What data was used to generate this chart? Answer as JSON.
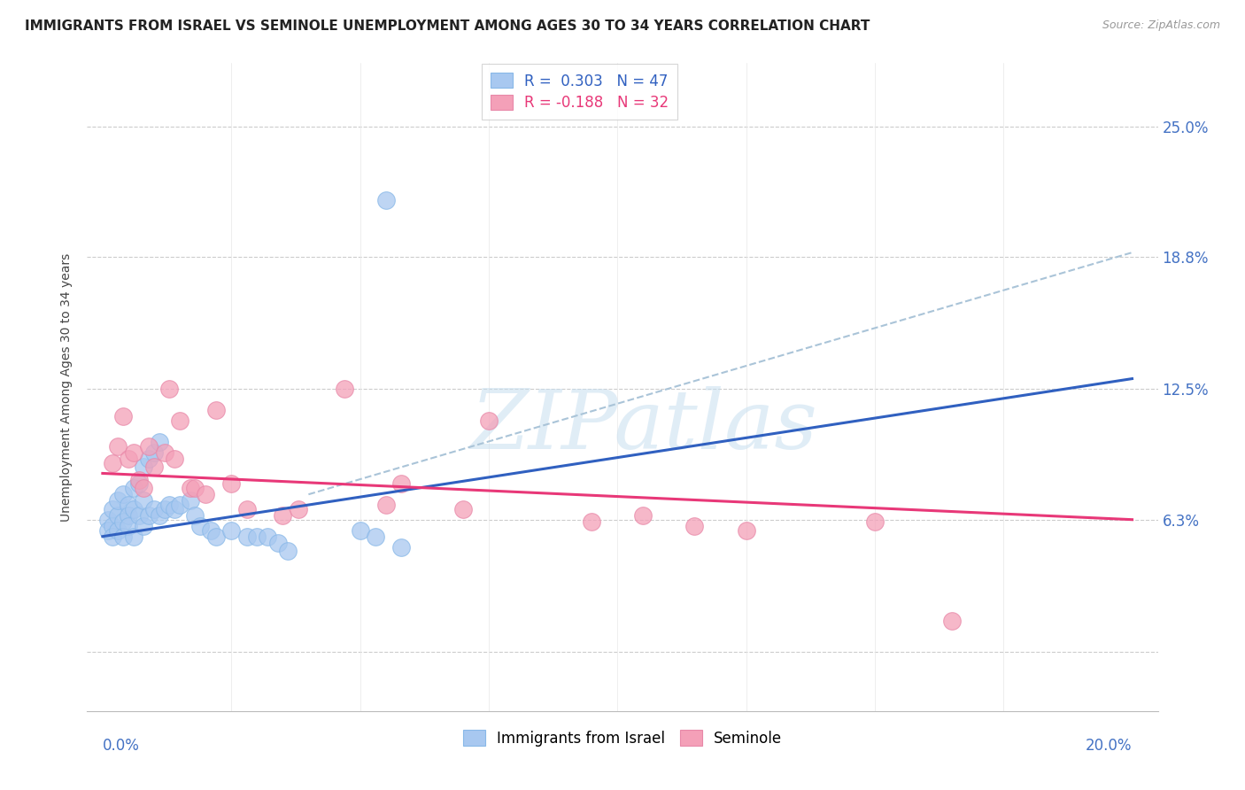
{
  "title": "IMMIGRANTS FROM ISRAEL VS SEMINOLE UNEMPLOYMENT AMONG AGES 30 TO 34 YEARS CORRELATION CHART",
  "source": "Source: ZipAtlas.com",
  "ylabel": "Unemployment Among Ages 30 to 34 years",
  "legend1_r": "0.303",
  "legend1_n": "47",
  "legend2_r": "-0.188",
  "legend2_n": "32",
  "color_blue": "#a8c8f0",
  "color_pink": "#f4a0b8",
  "color_blue_line": "#3060c0",
  "color_pink_line": "#e83878",
  "color_dashed": "#aac4d8",
  "watermark_text": "ZIPatlas",
  "xlim": [
    0.0,
    0.2
  ],
  "ylim": [
    -0.028,
    0.28
  ],
  "blue_x": [
    0.001,
    0.001,
    0.002,
    0.002,
    0.002,
    0.003,
    0.003,
    0.003,
    0.004,
    0.004,
    0.004,
    0.005,
    0.005,
    0.005,
    0.006,
    0.006,
    0.006,
    0.007,
    0.007,
    0.008,
    0.008,
    0.008,
    0.009,
    0.009,
    0.01,
    0.01,
    0.011,
    0.011,
    0.012,
    0.013,
    0.014,
    0.015,
    0.017,
    0.018,
    0.019,
    0.021,
    0.022,
    0.025,
    0.028,
    0.03,
    0.032,
    0.034,
    0.036,
    0.05,
    0.053,
    0.055,
    0.058
  ],
  "blue_y": [
    0.063,
    0.058,
    0.068,
    0.06,
    0.055,
    0.065,
    0.072,
    0.058,
    0.075,
    0.062,
    0.055,
    0.07,
    0.065,
    0.06,
    0.078,
    0.068,
    0.055,
    0.08,
    0.065,
    0.088,
    0.072,
    0.06,
    0.092,
    0.065,
    0.095,
    0.068,
    0.1,
    0.065,
    0.068,
    0.07,
    0.068,
    0.07,
    0.072,
    0.065,
    0.06,
    0.058,
    0.055,
    0.058,
    0.055,
    0.055,
    0.055,
    0.052,
    0.048,
    0.058,
    0.055,
    0.215,
    0.05
  ],
  "pink_x": [
    0.002,
    0.003,
    0.004,
    0.005,
    0.006,
    0.007,
    0.008,
    0.009,
    0.01,
    0.012,
    0.013,
    0.014,
    0.015,
    0.017,
    0.018,
    0.02,
    0.022,
    0.025,
    0.028,
    0.035,
    0.038,
    0.047,
    0.055,
    0.058,
    0.07,
    0.075,
    0.095,
    0.105,
    0.115,
    0.125,
    0.15,
    0.165
  ],
  "pink_y": [
    0.09,
    0.098,
    0.112,
    0.092,
    0.095,
    0.082,
    0.078,
    0.098,
    0.088,
    0.095,
    0.125,
    0.092,
    0.11,
    0.078,
    0.078,
    0.075,
    0.115,
    0.08,
    0.068,
    0.065,
    0.068,
    0.125,
    0.07,
    0.08,
    0.068,
    0.11,
    0.062,
    0.065,
    0.06,
    0.058,
    0.062,
    0.015
  ],
  "blue_line_x": [
    0.0,
    0.2
  ],
  "blue_line_y": [
    0.055,
    0.13
  ],
  "pink_line_x": [
    0.0,
    0.2
  ],
  "pink_line_y": [
    0.085,
    0.063
  ],
  "dash_line_x": [
    0.04,
    0.2
  ],
  "dash_line_y": [
    0.075,
    0.19
  ]
}
